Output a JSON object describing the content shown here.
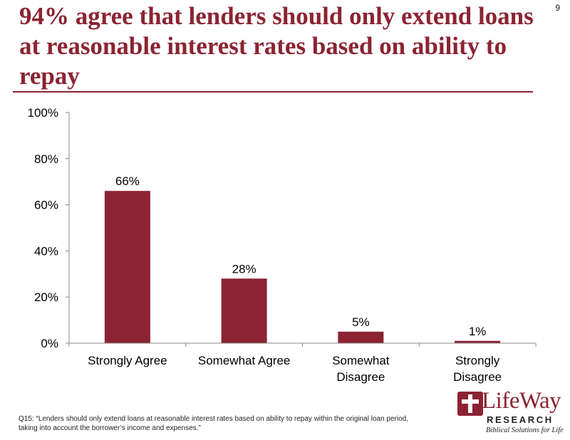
{
  "page": {
    "title": "94% agree that lenders should only extend loans at reasonable interest rates based on ability to repay",
    "page_number": "9",
    "footnote_lines": [
      "Q15: “Lenders should only extend loans at reasonable interest rates based on ability to repay within the original loan period,",
      "taking into account the borrower’s income and expenses.”"
    ],
    "logo": {
      "word": "LifeWay",
      "registered": "®",
      "research": "RESEARCH",
      "tagline": "Biblical Solutions for Life"
    }
  },
  "colors": {
    "brand": "#8b2332",
    "bar": "#8b2332",
    "axis": "#888888",
    "text": "#000000"
  },
  "chart_data": {
    "type": "bar",
    "title": "",
    "xlabel": "",
    "ylabel": "",
    "ylim": [
      0,
      100
    ],
    "yticks": [
      0,
      20,
      40,
      60,
      80,
      100
    ],
    "ytick_labels": [
      "0%",
      "20%",
      "40%",
      "60%",
      "80%",
      "100%"
    ],
    "grid": false,
    "categories": [
      [
        "Strongly Agree"
      ],
      [
        "Somewhat Agree"
      ],
      [
        "Somewhat",
        "Disagree"
      ],
      [
        "Strongly",
        "Disagree"
      ]
    ],
    "values": [
      66,
      28,
      5,
      1
    ],
    "data_labels": [
      "66%",
      "28%",
      "5%",
      "1%"
    ]
  }
}
